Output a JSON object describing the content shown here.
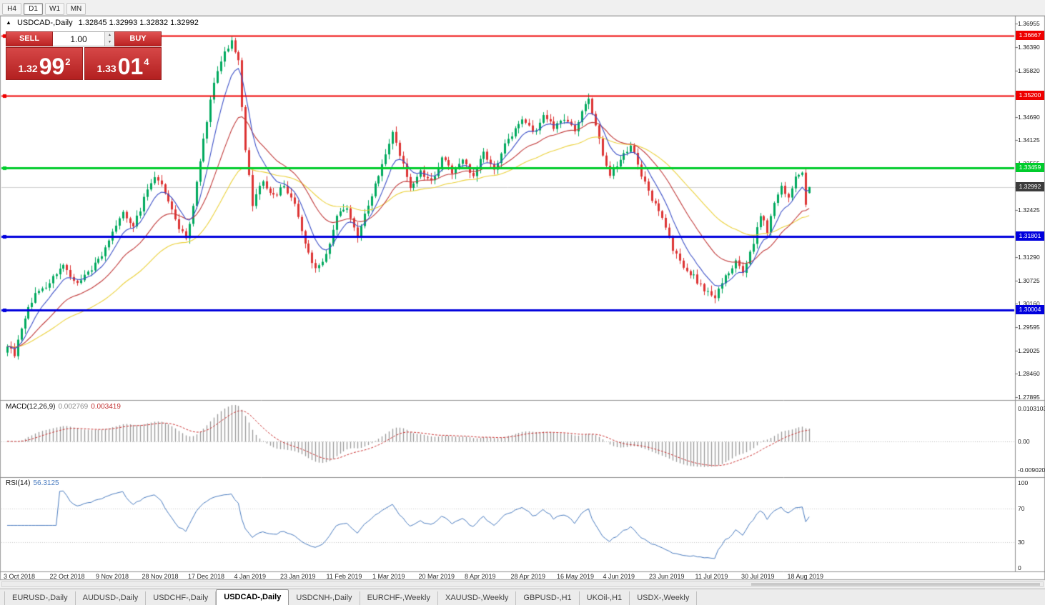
{
  "topbar": {
    "timeframes": [
      {
        "label": "H4",
        "active": false
      },
      {
        "label": "D1",
        "active": true
      },
      {
        "label": "W1",
        "active": false
      },
      {
        "label": "MN",
        "active": false
      }
    ]
  },
  "chart_header": {
    "collapse_icon": "▲",
    "symbol": "USDCAD-,Daily",
    "ohlc_text": "1.32845 1.32993 1.32832 1.32992"
  },
  "trade_panel": {
    "sell_label": "SELL",
    "buy_label": "BUY",
    "volume": "1.00",
    "sell_price": {
      "base": "1.32",
      "big": "99",
      "sup": "2"
    },
    "buy_price": {
      "base": "1.33",
      "big": "01",
      "sup": "4"
    }
  },
  "price_axis": {
    "labels": [
      "1.36955",
      "1.36390",
      "1.35820",
      "1.35255",
      "1.34690",
      "1.34125",
      "1.33555",
      "1.32990",
      "1.32425",
      "1.31860",
      "1.31290",
      "1.30725",
      "1.30160",
      "1.29595",
      "1.29025",
      "1.28460",
      "1.27895"
    ]
  },
  "hlines": [
    {
      "label": "1.36667",
      "value": 1.36667,
      "color": "#ee0000",
      "thickness": 2
    },
    {
      "label": "1.35200",
      "value": 1.352,
      "color": "#ee0000",
      "thickness": 2
    },
    {
      "label": "1.33459",
      "value": 1.33459,
      "color": "#00cc2c",
      "thickness": 3
    },
    {
      "label": "1.31801",
      "value": 1.31801,
      "color": "#0000dd",
      "thickness": 3
    },
    {
      "label": "1.30004",
      "value": 1.30004,
      "color": "#0000dd",
      "thickness": 3
    }
  ],
  "current_price": {
    "label": "1.32992",
    "value": 1.32992,
    "tag_color": "#3c3c3c"
  },
  "macd_panel": {
    "name": "MACD(12,26,9)",
    "value_main": "0.002769",
    "value_signal": "0.003419",
    "axis": [
      {
        "label": "0.0103103",
        "value": 0.0103103
      },
      {
        "label": "0.00",
        "value": 0
      },
      {
        "label": "-0.0090203",
        "value": -0.0090203
      }
    ]
  },
  "rsi_panel": {
    "name": "RSI(14)",
    "value": "56.3125",
    "axis": [
      {
        "label": "100",
        "value": 100
      },
      {
        "label": "70",
        "value": 70
      },
      {
        "label": "30",
        "value": 30
      },
      {
        "label": "0",
        "value": 0
      }
    ],
    "levels": [
      70,
      30
    ]
  },
  "time_axis": {
    "labels": [
      "3 Oct 2018",
      "22 Oct 2018",
      "9 Nov 2018",
      "28 Nov 2018",
      "17 Dec 2018",
      "4 Jan 2019",
      "23 Jan 2019",
      "11 Feb 2019",
      "1 Mar 2019",
      "20 Mar 2019",
      "8 Apr 2019",
      "28 Apr 2019",
      "16 May 2019",
      "4 Jun 2019",
      "23 Jun 2019",
      "11 Jul 2019",
      "30 Jul 2019",
      "18 Aug 2019"
    ]
  },
  "tabs": [
    {
      "label": "EURUSD-,Daily",
      "active": false
    },
    {
      "label": "AUDUSD-,Daily",
      "active": false
    },
    {
      "label": "USDCHF-,Daily",
      "active": false
    },
    {
      "label": "USDCAD-,Daily",
      "active": true
    },
    {
      "label": "USDCNH-,Daily",
      "active": false
    },
    {
      "label": "EURCHF-,Weekly",
      "active": false
    },
    {
      "label": "XAUUSD-,Weekly",
      "active": false
    },
    {
      "label": "GBPUSD-,H1",
      "active": false
    },
    {
      "label": "UKOil-,H1",
      "active": false
    },
    {
      "label": "USDX-,Weekly",
      "active": false
    }
  ],
  "chart_data": {
    "type": "candlestick",
    "symbol": "USDCAD",
    "timeframe": "Daily",
    "current_bar": {
      "open": 1.32845,
      "high": 1.32993,
      "low": 1.32832,
      "close": 1.32992
    },
    "y_range": [
      1.27895,
      1.36955
    ],
    "candles_count": 230,
    "last_close": 1.32992,
    "close_waypoints": [
      [
        0,
        1.2915
      ],
      [
        2,
        1.2895
      ],
      [
        5,
        1.2985
      ],
      [
        8,
        1.304
      ],
      [
        11,
        1.306
      ],
      [
        13,
        1.308
      ],
      [
        16,
        1.311
      ],
      [
        19,
        1.3065
      ],
      [
        22,
        1.308
      ],
      [
        25,
        1.311
      ],
      [
        27,
        1.3135
      ],
      [
        30,
        1.319
      ],
      [
        33,
        1.324
      ],
      [
        36,
        1.32
      ],
      [
        39,
        1.327
      ],
      [
        42,
        1.332
      ],
      [
        45,
        1.329
      ],
      [
        48,
        1.322
      ],
      [
        51,
        1.317
      ],
      [
        53,
        1.326
      ],
      [
        56,
        1.341
      ],
      [
        59,
        1.3555
      ],
      [
        62,
        1.3625
      ],
      [
        64,
        1.365
      ],
      [
        66,
        1.3605
      ],
      [
        68,
        1.339
      ],
      [
        70,
        1.326
      ],
      [
        73,
        1.3315
      ],
      [
        76,
        1.3275
      ],
      [
        79,
        1.3305
      ],
      [
        82,
        1.326
      ],
      [
        85,
        1.316
      ],
      [
        88,
        1.31
      ],
      [
        91,
        1.3135
      ],
      [
        94,
        1.3225
      ],
      [
        97,
        1.325
      ],
      [
        100,
        1.3175
      ],
      [
        103,
        1.3255
      ],
      [
        106,
        1.333
      ],
      [
        110,
        1.3435
      ],
      [
        113,
        1.335
      ],
      [
        115,
        1.329
      ],
      [
        118,
        1.334
      ],
      [
        121,
        1.331
      ],
      [
        124,
        1.337
      ],
      [
        127,
        1.3335
      ],
      [
        130,
        1.336
      ],
      [
        133,
        1.333
      ],
      [
        136,
        1.338
      ],
      [
        139,
        1.3345
      ],
      [
        142,
        1.34
      ],
      [
        145,
        1.344
      ],
      [
        147,
        1.3465
      ],
      [
        150,
        1.343
      ],
      [
        153,
        1.347
      ],
      [
        156,
        1.3445
      ],
      [
        159,
        1.3465
      ],
      [
        162,
        1.344
      ],
      [
        165,
        1.3495
      ],
      [
        166,
        1.351
      ],
      [
        168,
        1.3455
      ],
      [
        170,
        1.338
      ],
      [
        172,
        1.333
      ],
      [
        175,
        1.336
      ],
      [
        178,
        1.3405
      ],
      [
        181,
        1.333
      ],
      [
        184,
        1.327
      ],
      [
        187,
        1.322
      ],
      [
        190,
        1.315
      ],
      [
        193,
        1.311
      ],
      [
        196,
        1.308
      ],
      [
        199,
        1.305
      ],
      [
        202,
        1.3035
      ],
      [
        205,
        1.3085
      ],
      [
        208,
        1.312
      ],
      [
        210,
        1.3095
      ],
      [
        213,
        1.316
      ],
      [
        215,
        1.3235
      ],
      [
        217,
        1.3195
      ],
      [
        219,
        1.3265
      ],
      [
        221,
        1.33
      ],
      [
        223,
        1.3275
      ],
      [
        225,
        1.3325
      ],
      [
        227,
        1.3335
      ],
      [
        228,
        1.325
      ],
      [
        229,
        1.32992
      ]
    ],
    "indicators": [
      {
        "name": "MACD",
        "params": [
          12,
          26,
          9
        ],
        "current": [
          0.002769,
          0.003419
        ]
      },
      {
        "name": "RSI",
        "params": [
          14
        ],
        "current": 56.3125
      },
      {
        "name": "MA",
        "periods": [
          8,
          21,
          45
        ],
        "colors": [
          "#3c50c8",
          "#c23b3b",
          "#ecd23c"
        ]
      }
    ],
    "colors": {
      "up": "#00a95e",
      "down": "#dd3434",
      "macd_hist": "#9a9a9a",
      "macd_signal": "#cc3333",
      "rsi_line": "#4a7cc0"
    }
  }
}
